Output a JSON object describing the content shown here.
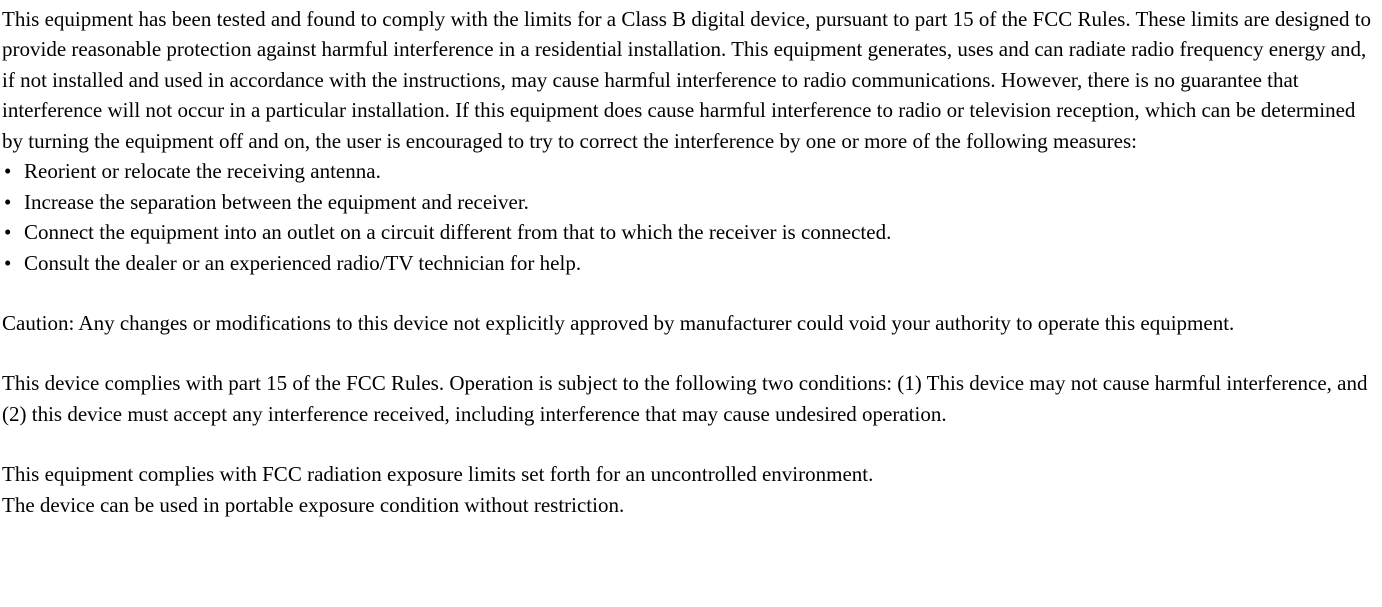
{
  "colors": {
    "text": "#000000",
    "background": "#ffffff"
  },
  "typography": {
    "font_family": "Times New Roman",
    "font_size_pt": 16,
    "line_height": 1.45
  },
  "paragraph1": "This equipment has been tested and found to comply with the limits for a Class B digital device, pursuant to part 15 of the FCC Rules. These limits are designed to provide reasonable protection against harmful interference in a residential installation. This equipment generates, uses and can radiate radio frequency energy and, if not installed and used in accordance with the instructions, may cause harmful interference to radio communications. However, there is no guarantee that interference will not occur in a particular installation. If this equipment does cause harmful interference to radio or television reception, which can be determined by turning the equipment off and on, the user is encouraged to try to correct the interference by one or more of the following measures:",
  "bullets": [
    "Reorient or relocate the receiving antenna.",
    "Increase the separation between the equipment and receiver.",
    "Connect the equipment into an outlet on a circuit different from that to which the receiver is connected.",
    "Consult the dealer or an experienced radio/TV technician for help."
  ],
  "bullet_char": "•",
  "paragraph2": "Caution: Any changes or modifications to this device not explicitly approved by manufacturer could void your authority to operate this equipment.",
  "paragraph3": "This device complies with part 15 of the FCC Rules. Operation is subject to the following two conditions: (1) This device may not cause harmful interference, and (2) this device must accept any interference received, including interference that may cause undesired operation.",
  "paragraph4": "This equipment complies with FCC radiation exposure limits set forth for an uncontrolled environment.",
  "paragraph5": "The device can be used in portable exposure condition without restriction."
}
